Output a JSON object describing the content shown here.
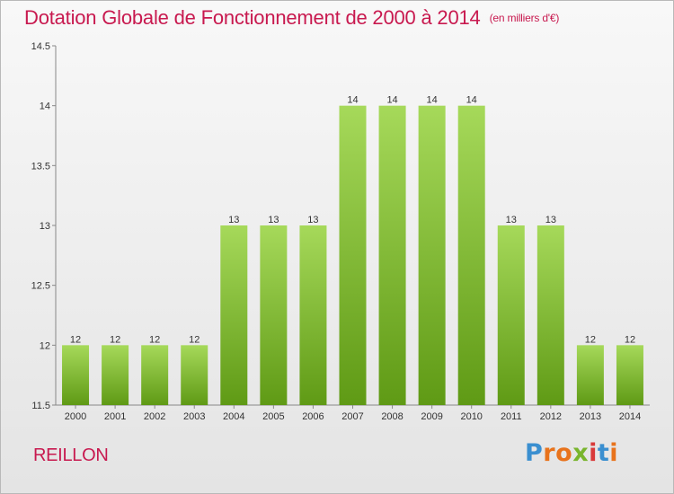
{
  "title": "Dotation Globale de Fonctionnement de 2000 à 2014",
  "unit_note": "(en milliers d'€)",
  "commune": "REILLON",
  "brand": "Proxiti",
  "brand_letter_colors": [
    "#3a8fd0",
    "#e8731c",
    "#e8731c",
    "#79b52d",
    "#d93a3a",
    "#3a8fd0",
    "#e8731c"
  ],
  "colors": {
    "title": "#c8194f",
    "bar_top": "#a6d95a",
    "bar_bottom": "#5f9a15",
    "axis": "#888888",
    "label": "#333333"
  },
  "chart_data": {
    "type": "bar",
    "categories": [
      "2000",
      "2001",
      "2002",
      "2003",
      "2004",
      "2005",
      "2006",
      "2007",
      "2008",
      "2009",
      "2010",
      "2011",
      "2012",
      "2013",
      "2014"
    ],
    "values": [
      12,
      12,
      12,
      12,
      13,
      13,
      13,
      14,
      14,
      14,
      14,
      13,
      13,
      12,
      12
    ],
    "data_labels": [
      "12",
      "12",
      "12",
      "12",
      "13",
      "13",
      "13",
      "14",
      "14",
      "14",
      "14",
      "13",
      "13",
      "12",
      "12"
    ],
    "yticks": [
      11.5,
      12,
      12.5,
      13,
      13.5,
      14,
      14.5
    ],
    "ytick_labels": [
      "11.5",
      "12",
      "12.5",
      "13",
      "13.5",
      "14",
      "14.5"
    ],
    "ylim": [
      11.5,
      14.5
    ],
    "grid": false,
    "legend": "none"
  }
}
